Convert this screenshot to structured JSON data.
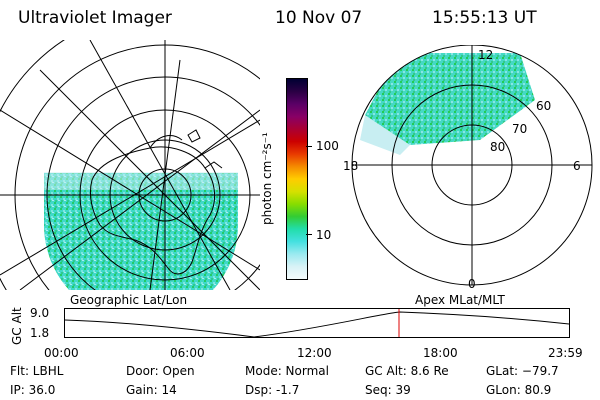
{
  "header": {
    "title": "Ultraviolet Imager",
    "date": "10 Nov 07",
    "time": "15:55:13 UT"
  },
  "colorbar": {
    "unit_label": "photon cm⁻²s⁻¹",
    "ticks": [
      "100",
      "10"
    ],
    "colors": [
      "#000033",
      "#2a0044",
      "#5a0066",
      "#880066",
      "#aa0033",
      "#cc0000",
      "#e83a00",
      "#f58a00",
      "#ffcc00",
      "#d6e000",
      "#88dd00",
      "#33cc33",
      "#22ddaa",
      "#44e0e0",
      "#9aeaf0",
      "#d8f2f6",
      "#f4fbfc"
    ]
  },
  "right_map": {
    "mlt_labels": {
      "top": "12",
      "left": "18",
      "right": "6",
      "bottom": "0"
    },
    "lat_labels": [
      "60",
      "70",
      "80"
    ]
  },
  "plot": {
    "left_title": "Geographic Lat/Lon",
    "right_title": "Apex MLat/MLT",
    "ylabel": "GC Alt",
    "yticks": [
      "9.0",
      "1.8"
    ],
    "xticks": [
      "00:00",
      "06:00",
      "12:00",
      "18:00",
      "23:59"
    ],
    "marker_time_hours": 15.92,
    "marker_color": "#dd0000"
  },
  "footer": {
    "filter": "Flt: LBHL",
    "ip": "IP: 36.0",
    "door": "Door: Open",
    "gain": "Gain: 14",
    "mode": "Mode: Normal",
    "dsp": "Dsp:    -1.7",
    "gc_alt": "GC Alt: 8.6 Re",
    "seq": "Seq: 39",
    "glat": "GLat: −79.7",
    "glon": "GLon:  80.9"
  }
}
